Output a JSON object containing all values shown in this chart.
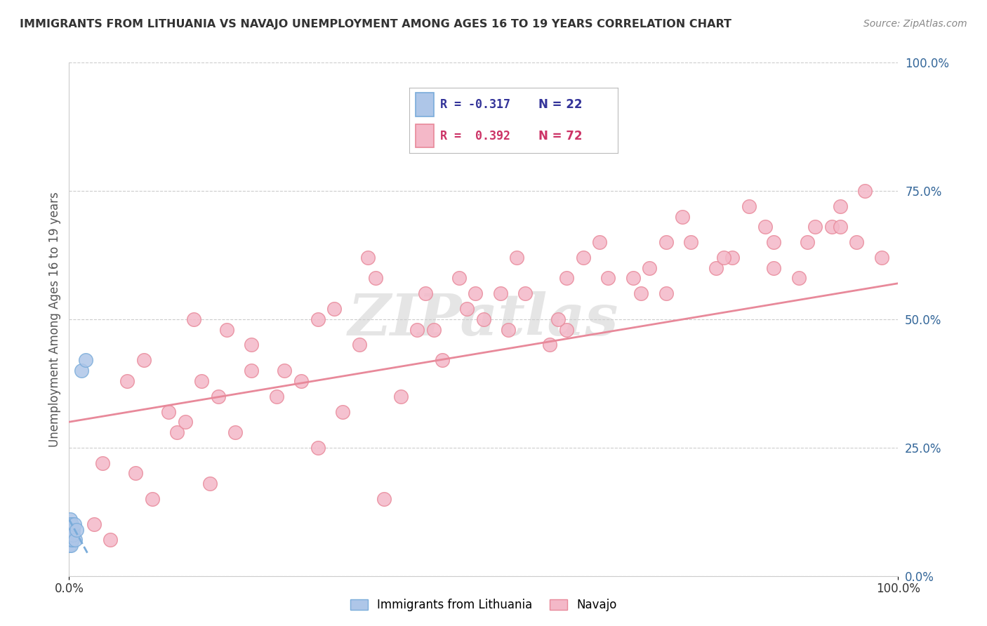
{
  "title": "IMMIGRANTS FROM LITHUANIA VS NAVAJO UNEMPLOYMENT AMONG AGES 16 TO 19 YEARS CORRELATION CHART",
  "source": "Source: ZipAtlas.com",
  "ylabel": "Unemployment Among Ages 16 to 19 years",
  "legend_labels": [
    "Immigrants from Lithuania",
    "Navajo"
  ],
  "legend_r_lithuania": "R = -0.317",
  "legend_n_lithuania": "N = 22",
  "legend_r_navajo": "R =  0.392",
  "legend_n_navajo": "N = 72",
  "ytick_values": [
    0.0,
    0.25,
    0.5,
    0.75,
    1.0
  ],
  "ytick_labels": [
    "0.0%",
    "25.0%",
    "50.0%",
    "75.0%",
    "100.0%"
  ],
  "xtick_values": [
    0.0,
    1.0
  ],
  "xtick_labels": [
    "0.0%",
    "100.0%"
  ],
  "background_color": "#ffffff",
  "grid_color": "#cccccc",
  "watermark": "ZIPatlas",
  "lithuania_color": "#aec6e8",
  "navajo_color": "#f4b8c8",
  "lithuania_edge": "#7aacda",
  "navajo_edge": "#e8899a",
  "trend_lithuania_color": "#7aacda",
  "trend_navajo_color": "#e8899a",
  "navajo_trend_x0": 0.0,
  "navajo_trend_y0": 0.3,
  "navajo_trend_x1": 1.0,
  "navajo_trend_y1": 0.57,
  "lithuania_trend_x0": 0.0,
  "lithuania_trend_y0": 0.11,
  "lithuania_trend_x1": 0.022,
  "lithuania_trend_y1": 0.045,
  "xlim": [
    0,
    1.0
  ],
  "ylim": [
    0,
    1.0
  ],
  "nav_x": [
    0.03,
    0.07,
    0.04,
    0.13,
    0.16,
    0.08,
    0.2,
    0.09,
    0.25,
    0.1,
    0.14,
    0.17,
    0.22,
    0.3,
    0.35,
    0.28,
    0.4,
    0.38,
    0.15,
    0.18,
    0.45,
    0.33,
    0.5,
    0.42,
    0.55,
    0.48,
    0.6,
    0.52,
    0.65,
    0.58,
    0.7,
    0.62,
    0.75,
    0.68,
    0.8,
    0.72,
    0.85,
    0.78,
    0.9,
    0.82,
    0.95,
    0.88,
    0.98,
    0.92,
    0.05,
    0.12,
    0.19,
    0.26,
    0.32,
    0.37,
    0.44,
    0.49,
    0.54,
    0.59,
    0.64,
    0.69,
    0.74,
    0.79,
    0.84,
    0.89,
    0.93,
    0.96,
    0.47,
    0.53,
    0.36,
    0.43,
    0.3,
    0.22,
    0.6,
    0.72,
    0.85,
    0.93
  ],
  "nav_y": [
    0.1,
    0.38,
    0.22,
    0.28,
    0.38,
    0.2,
    0.28,
    0.42,
    0.35,
    0.15,
    0.3,
    0.18,
    0.4,
    0.25,
    0.45,
    0.38,
    0.35,
    0.15,
    0.5,
    0.35,
    0.42,
    0.32,
    0.5,
    0.48,
    0.55,
    0.52,
    0.48,
    0.55,
    0.58,
    0.45,
    0.6,
    0.62,
    0.65,
    0.58,
    0.62,
    0.55,
    0.65,
    0.6,
    0.68,
    0.72,
    0.65,
    0.58,
    0.62,
    0.68,
    0.07,
    0.32,
    0.48,
    0.4,
    0.52,
    0.58,
    0.48,
    0.55,
    0.62,
    0.5,
    0.65,
    0.55,
    0.7,
    0.62,
    0.68,
    0.65,
    0.72,
    0.75,
    0.58,
    0.48,
    0.62,
    0.55,
    0.5,
    0.45,
    0.58,
    0.65,
    0.6,
    0.68
  ],
  "lith_x": [
    0.0003,
    0.0005,
    0.0008,
    0.001,
    0.0012,
    0.0015,
    0.0018,
    0.002,
    0.0022,
    0.0025,
    0.0028,
    0.003,
    0.0033,
    0.0035,
    0.004,
    0.0045,
    0.005,
    0.006,
    0.007,
    0.009,
    0.015,
    0.02
  ],
  "lith_y": [
    0.08,
    0.1,
    0.06,
    0.09,
    0.07,
    0.11,
    0.08,
    0.1,
    0.06,
    0.08,
    0.09,
    0.07,
    0.1,
    0.08,
    0.07,
    0.09,
    0.08,
    0.1,
    0.07,
    0.09,
    0.4,
    0.42
  ]
}
